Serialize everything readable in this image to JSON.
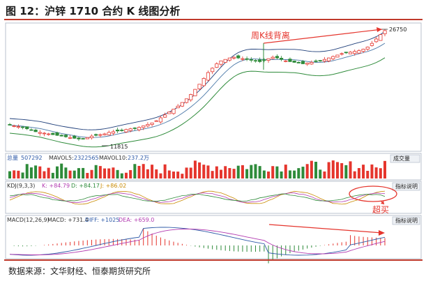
{
  "header": {
    "title": "图 12：沪锌 1710 合约 K 线图分析"
  },
  "source": "数据来源：文华财经、恒泰期货研究所",
  "colors": {
    "up": "#e5352d",
    "down": "#2e8b3a",
    "ma_outer": "#2e8b3a",
    "ma_mid": "#4a78a8",
    "ma_inner": "#1f3f7a",
    "annot": "#e5352d"
  },
  "annotations": {
    "divergence": "周K线背离",
    "high_label": "26750",
    "low_label": "11815",
    "overbought": "超买"
  },
  "vol_panel": {
    "lbl_total": "总量",
    "val_total": "507292",
    "lbl_mavol5": "MAVOL5:",
    "val_mavol5": "2322565",
    "lbl_mavol10": "MAVOL10:",
    "val_mavol10": "237.2万",
    "btn": "成交量"
  },
  "kdj_panel": {
    "lbl": "KDJ(9,3,3)",
    "k": "K: +84.79",
    "d": "D: +84.17",
    "j": "J: +86.02",
    "btn": "指标说明"
  },
  "macd_panel": {
    "lbl": "MACD(12,26,9)",
    "macd": "MACD: +731.4",
    "diff": "DIFF: +1025",
    "dea": "DEA: +659.0",
    "btn": "指标说明"
  },
  "chart_data": [
    {
      "type": "candlestick",
      "title": "沪锌 1710 合约 K 线图分析",
      "bars": 88,
      "ylim": [
        10500,
        27500
      ],
      "annotated_low": 11815,
      "annotated_high": 26750,
      "ohlc_close_trend": [
        13800,
        13700,
        13600,
        13500,
        13300,
        13100,
        12900,
        12800,
        12700,
        12600,
        12500,
        12400,
        12300,
        12200,
        12100,
        12000,
        11900,
        11950,
        12100,
        12300,
        12400,
        12500,
        12600,
        12800,
        12900,
        13000,
        13100,
        13200,
        13300,
        13400,
        13500,
        13700,
        13900,
        14100,
        14400,
        14800,
        15200,
        15600,
        16000,
        16400,
        16900,
        17400,
        18000,
        18700,
        19400,
        20200,
        21000,
        21600,
        22200,
        22600,
        22800,
        23000,
        23100,
        23000,
        22900,
        22800,
        22700,
        22600,
        22500,
        22700,
        22900,
        23100,
        23000,
        22800,
        22600,
        22500,
        22400,
        22300,
        22200,
        22300,
        22400,
        22500,
        22600,
        22800,
        23000,
        23200,
        23400,
        23600,
        23700,
        23800,
        23900,
        24000,
        24200,
        24500,
        25000,
        25600,
        26200,
        26750
      ]
    },
    {
      "type": "bar",
      "title": "volume",
      "mavol5": "2322565",
      "mavol10": "237.2万"
    },
    {
      "type": "line",
      "title": "KDJ",
      "series": [
        {
          "name": "K",
          "last": 84.79
        },
        {
          "name": "D",
          "last": 84.17
        },
        {
          "name": "J",
          "last": 86.02
        }
      ]
    },
    {
      "type": "bar",
      "title": "MACD",
      "series": [
        {
          "name": "MACD",
          "last": 731.4
        },
        {
          "name": "DIFF",
          "last": 1025
        },
        {
          "name": "DEA",
          "last": 659.0
        }
      ]
    }
  ]
}
